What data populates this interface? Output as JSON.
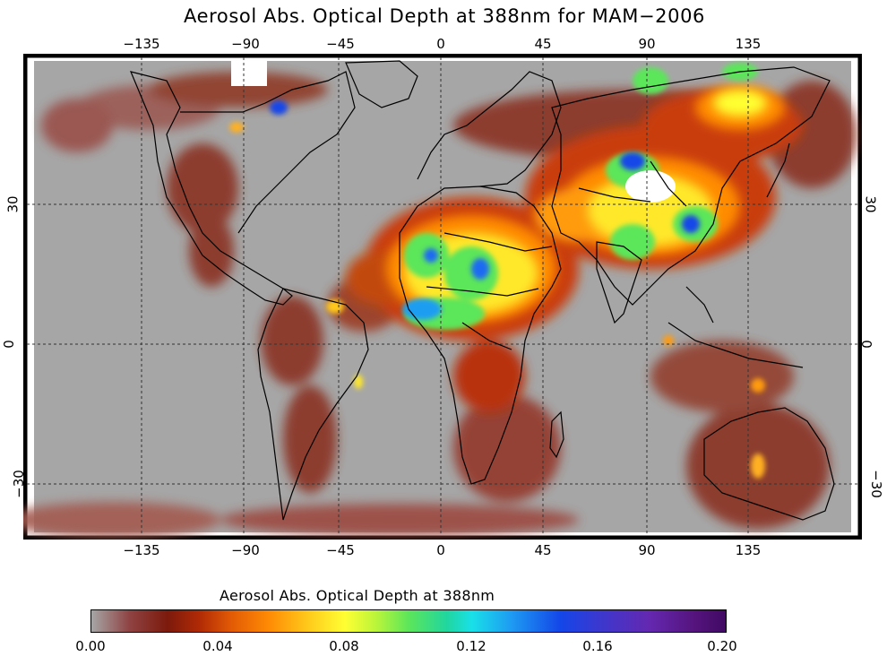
{
  "title": "Aerosol Abs. Optical Depth at 388nm for MAM−2006",
  "lon_ticks": [
    "−135",
    "−90",
    "−45",
    "0",
    "45",
    "90",
    "135"
  ],
  "lat_ticks": [
    "30",
    "0",
    "−30"
  ],
  "colorbar": {
    "label": "Aerosol Abs. Optical Depth at 388nm",
    "ticks": [
      "0.00",
      "0.04",
      "0.08",
      "0.12",
      "0.16",
      "0.20"
    ],
    "range": [
      0.0,
      0.2
    ]
  },
  "colors": {
    "background_gray": "#a6a6a6",
    "low_red": "#8f2a14",
    "mid_orange": "#ff8b05",
    "mid_yellow": "#ffff33",
    "high_green": "#5ce65a",
    "high_blue": "#1446e8",
    "max_white": "#ffffff"
  }
}
